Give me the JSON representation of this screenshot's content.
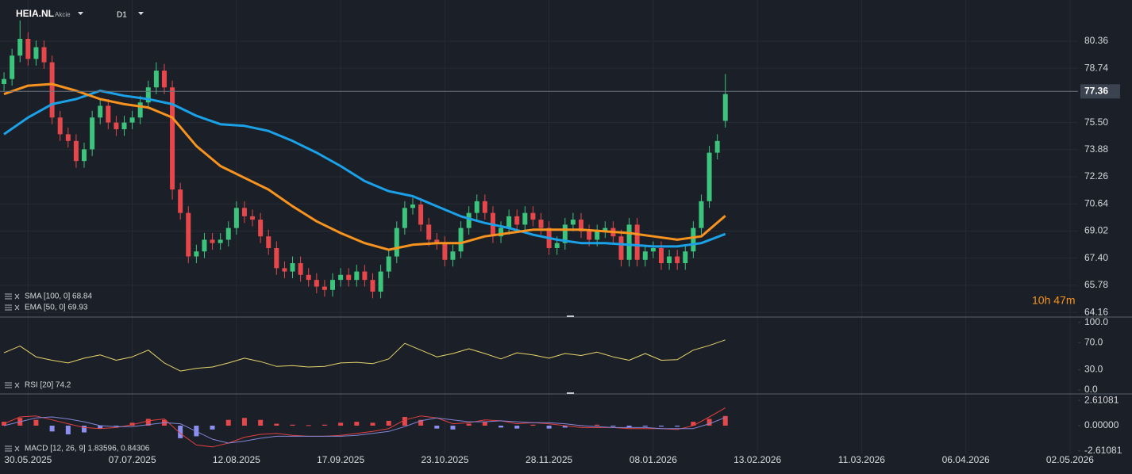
{
  "header": {
    "symbol": "HEIA.NL",
    "asset_type": "Akcie",
    "timeframe": "D1",
    "countdown": "10h 47m"
  },
  "chart_data": [
    {
      "type": "candlestick",
      "x": [
        0,
        2,
        4,
        6,
        8,
        10,
        12,
        14,
        16,
        18,
        20,
        22,
        24,
        26,
        28,
        30,
        32,
        34,
        36,
        38,
        40,
        42,
        44,
        46,
        48,
        50,
        52,
        54,
        56,
        58,
        60,
        62,
        64,
        66,
        68,
        70,
        72,
        74,
        76,
        78,
        80,
        82,
        84,
        86,
        88,
        90,
        92,
        94,
        96,
        98,
        100,
        102,
        104,
        106,
        108,
        110,
        112,
        114,
        116,
        118,
        120,
        122,
        124,
        126,
        128,
        130,
        132,
        134,
        136,
        138,
        140,
        142,
        144,
        146,
        148,
        150,
        152,
        154,
        156,
        158,
        160,
        162,
        164,
        166,
        168,
        170,
        172,
        174,
        176,
        178,
        180
      ],
      "open": [
        77.8,
        78.1,
        79.5,
        80.5,
        79.3,
        80.0,
        79.1,
        75.8,
        74.8,
        74.4,
        73.2,
        73.9,
        75.8,
        76.5,
        75.5,
        75.1,
        75.5,
        75.8,
        76.7,
        77.6,
        78.6,
        77.6,
        71.5,
        70.1,
        67.5,
        67.8,
        68.5,
        68.3,
        68.5,
        69.2,
        70.4,
        69.9,
        69.7,
        68.7,
        68.0,
        66.8,
        66.6,
        67.1,
        66.4,
        66.1,
        65.7,
        65.5,
        66.1,
        66.4,
        66.1,
        66.6,
        66.1,
        65.4,
        66.6,
        67.5,
        69.2,
        70.4,
        70.6,
        69.4,
        68.5,
        68.3,
        67.3,
        67.8,
        69.2,
        70.1,
        70.8,
        70.1,
        68.7,
        69.2,
        69.9,
        69.4,
        70.1,
        69.7,
        69.2,
        68.0,
        68.3,
        69.4,
        69.7,
        69.0,
        68.5,
        69.0,
        69.2,
        68.7,
        67.3,
        69.4,
        67.3,
        67.8,
        68.0,
        67.1,
        67.5,
        67.1,
        67.8,
        69.2,
        70.8,
        73.7,
        75.6
      ],
      "high": [
        78.5,
        79.9,
        81.6,
        80.9,
        80.4,
        80.4,
        79.5,
        76.2,
        75.2,
        74.8,
        74.3,
        76.2,
        76.9,
        76.9,
        75.9,
        75.9,
        76.2,
        77.1,
        78.0,
        79.1,
        79.0,
        78.0,
        71.9,
        70.5,
        68.2,
        68.9,
        68.9,
        68.9,
        69.6,
        70.8,
        70.8,
        70.3,
        70.1,
        69.1,
        68.4,
        67.2,
        67.5,
        67.5,
        66.8,
        66.5,
        66.1,
        66.5,
        66.8,
        66.8,
        67.0,
        67.0,
        66.5,
        67.0,
        67.9,
        69.6,
        70.8,
        71.0,
        71.0,
        69.8,
        68.9,
        68.7,
        68.2,
        69.6,
        70.5,
        71.2,
        71.2,
        70.5,
        69.6,
        70.3,
        70.3,
        70.5,
        70.5,
        70.1,
        69.6,
        68.7,
        69.8,
        70.1,
        70.1,
        69.4,
        69.4,
        69.6,
        69.6,
        69.1,
        69.8,
        69.8,
        68.2,
        68.4,
        68.4,
        67.9,
        67.9,
        68.2,
        69.6,
        71.2,
        74.1,
        74.8,
        78.4
      ],
      "low": [
        77.4,
        77.7,
        79.1,
        78.9,
        78.9,
        78.7,
        75.4,
        74.4,
        74.0,
        72.8,
        72.8,
        73.5,
        75.4,
        75.1,
        74.7,
        74.7,
        75.1,
        75.4,
        76.3,
        77.2,
        77.2,
        70.9,
        69.7,
        67.1,
        67.1,
        67.4,
        67.9,
        67.9,
        68.1,
        68.8,
        69.5,
        69.3,
        68.3,
        67.6,
        66.4,
        66.2,
        66.2,
        66.0,
        65.7,
        65.3,
        65.1,
        65.1,
        65.7,
        65.7,
        65.7,
        65.7,
        65.0,
        65.0,
        66.2,
        67.1,
        68.8,
        70.0,
        69.0,
        68.1,
        67.9,
        66.9,
        66.9,
        67.4,
        68.8,
        69.7,
        69.7,
        68.3,
        68.3,
        68.8,
        69.0,
        69.0,
        69.3,
        68.8,
        67.6,
        67.6,
        67.9,
        69.0,
        68.6,
        68.1,
        68.1,
        68.6,
        68.3,
        66.9,
        66.9,
        66.9,
        66.9,
        67.4,
        66.7,
        66.7,
        66.7,
        66.7,
        67.4,
        68.8,
        70.4,
        73.3,
        75.2
      ],
      "close": [
        78.1,
        79.5,
        80.5,
        79.3,
        80.0,
        79.1,
        75.8,
        74.8,
        74.4,
        73.2,
        73.9,
        75.8,
        76.5,
        75.5,
        75.1,
        75.5,
        75.8,
        76.7,
        77.6,
        78.6,
        77.6,
        71.5,
        70.1,
        67.5,
        67.8,
        68.5,
        68.3,
        68.5,
        69.2,
        70.4,
        69.9,
        69.7,
        68.7,
        68.0,
        66.8,
        66.6,
        67.1,
        66.4,
        66.1,
        65.7,
        65.5,
        66.1,
        66.4,
        66.1,
        66.6,
        66.1,
        65.4,
        66.6,
        67.5,
        69.2,
        70.4,
        70.6,
        69.4,
        68.5,
        68.3,
        67.3,
        67.8,
        69.2,
        70.1,
        70.8,
        70.1,
        68.7,
        69.2,
        69.9,
        69.4,
        70.1,
        69.7,
        69.2,
        68.0,
        68.3,
        69.4,
        69.7,
        69.0,
        68.5,
        69.0,
        69.2,
        68.7,
        67.3,
        69.4,
        67.3,
        67.8,
        68.0,
        67.1,
        67.5,
        67.1,
        67.8,
        69.2,
        70.8,
        73.7,
        74.4,
        77.2
      ],
      "up_color": "#3cc47c",
      "down_color": "#e5474b",
      "xlim": [
        -1,
        268
      ],
      "xticks": [
        {
          "value": 6,
          "label": "30.05.2025"
        },
        {
          "value": 32,
          "label": "07.07.2025"
        },
        {
          "value": 58,
          "label": "12.08.2025"
        },
        {
          "value": 84,
          "label": "17.09.2025"
        },
        {
          "value": 110,
          "label": "23.10.2025"
        },
        {
          "value": 136,
          "label": "28.11.2025"
        },
        {
          "value": 162,
          "label": "08.01.2026"
        },
        {
          "value": 188,
          "label": "13.02.2026"
        },
        {
          "value": 214,
          "label": "11.03.2026"
        },
        {
          "value": 240,
          "label": "06.04.2026"
        },
        {
          "value": 266,
          "label": "02.05.2026"
        }
      ],
      "ylim": [
        63.88,
        82.82
      ],
      "yticks": [
        80.36,
        78.74,
        {
          "value": 75.5,
          "label": "75.50"
        },
        73.88,
        72.26,
        70.64,
        69.02,
        {
          "value": 67.4,
          "label": "67.40"
        },
        65.78,
        64.16
      ],
      "grid": true,
      "current_price": 77.36,
      "series": [
        {
          "name": "SMA [100, 0] 68.84",
          "color": "#1ba1e8",
          "x": [
            0,
            6,
            12,
            18,
            24,
            30,
            36,
            42,
            48,
            54,
            60,
            66,
            72,
            78,
            84,
            90,
            96,
            102,
            108,
            114,
            120,
            126,
            132,
            138,
            144,
            150,
            156,
            162,
            168,
            174,
            180
          ],
          "values": [
            74.8,
            75.8,
            76.6,
            76.9,
            77.4,
            77.1,
            76.9,
            76.6,
            75.9,
            75.4,
            75.3,
            75.0,
            74.4,
            73.7,
            72.9,
            72.0,
            71.4,
            71.1,
            70.5,
            69.9,
            69.5,
            69.2,
            68.8,
            68.5,
            68.3,
            68.3,
            68.2,
            68.1,
            68.1,
            68.3,
            68.84
          ]
        },
        {
          "name": "EMA [50, 0] 69.93",
          "color": "#f7931e",
          "x": [
            0,
            6,
            12,
            18,
            24,
            30,
            36,
            42,
            48,
            54,
            60,
            66,
            72,
            78,
            84,
            90,
            96,
            102,
            108,
            114,
            120,
            126,
            132,
            138,
            144,
            150,
            156,
            162,
            168,
            174,
            180
          ],
          "values": [
            77.2,
            77.7,
            77.8,
            77.4,
            76.9,
            76.6,
            76.4,
            75.8,
            74.1,
            72.9,
            72.2,
            71.5,
            70.5,
            69.6,
            68.9,
            68.3,
            67.9,
            68.2,
            68.3,
            68.3,
            68.7,
            68.9,
            69.1,
            69.1,
            69.1,
            69.0,
            68.9,
            68.7,
            68.5,
            68.7,
            69.93
          ]
        }
      ]
    },
    {
      "type": "line",
      "x": [
        0,
        4,
        8,
        12,
        16,
        20,
        24,
        28,
        32,
        36,
        40,
        44,
        48,
        52,
        56,
        60,
        64,
        68,
        72,
        76,
        80,
        84,
        88,
        92,
        96,
        100,
        104,
        108,
        112,
        116,
        120,
        124,
        128,
        132,
        136,
        140,
        144,
        148,
        152,
        156,
        160,
        164,
        168,
        172,
        176,
        180
      ],
      "ylim": [
        -5.9,
        108
      ],
      "yticks": [
        {
          "value": 100,
          "label": "100.0"
        },
        {
          "value": 70,
          "label": "70.0"
        },
        {
          "value": 30,
          "label": "30.0"
        },
        {
          "value": 0,
          "label": "0.0"
        }
      ],
      "series": [
        {
          "name": "RSI [20] 74.2",
          "color": "#e6d36b",
          "values": [
            55,
            65,
            49,
            44,
            40,
            47,
            52,
            44,
            49,
            59,
            40,
            28,
            32,
            34,
            40,
            47,
            42,
            35,
            36,
            34,
            35,
            40,
            41,
            39,
            46,
            69,
            59,
            49,
            54,
            61,
            54,
            46,
            55,
            52,
            47,
            54,
            51,
            56,
            49,
            44,
            54,
            44,
            45,
            59,
            66,
            74.2
          ]
        }
      ]
    },
    {
      "type": "macd",
      "legend": "MACD [12, 26, 9] 1.83596, 0.84306",
      "x": [
        0,
        4,
        8,
        12,
        16,
        20,
        24,
        28,
        32,
        36,
        40,
        44,
        48,
        52,
        56,
        60,
        64,
        68,
        72,
        76,
        80,
        84,
        88,
        92,
        96,
        100,
        104,
        108,
        112,
        116,
        120,
        124,
        128,
        132,
        136,
        140,
        144,
        148,
        152,
        156,
        160,
        164,
        168,
        172,
        176,
        180
      ],
      "ylim": [
        -2.87,
        3.28
      ],
      "yticks": [
        2.61081,
        {
          "value": 0,
          "label": "0.00000"
        },
        -2.61081
      ],
      "histogram": {
        "up_color": "#e5474b",
        "down_color": "#8c8ff0",
        "values": [
          0.4,
          0.8,
          0.6,
          -0.6,
          -0.9,
          -0.7,
          -0.3,
          -0.1,
          0.3,
          0.7,
          0.6,
          -1.3,
          -1.1,
          -0.4,
          0.6,
          0.8,
          0.6,
          0.2,
          0.1,
          0.05,
          0.1,
          0.3,
          0.4,
          0.3,
          0.5,
          0.9,
          0.6,
          -0.3,
          -0.4,
          0.2,
          0.4,
          -0.2,
          -0.3,
          0.1,
          -0.3,
          -0.2,
          0.05,
          0.1,
          -0.1,
          -0.2,
          -0.1,
          -0.1,
          -0.1,
          0.4,
          0.7,
          1.0
        ]
      },
      "series": [
        {
          "color": "#e0403f",
          "values": [
            0.2,
            0.9,
            1.0,
            0.6,
            0.2,
            -0.2,
            -0.3,
            -0.2,
            0.1,
            0.5,
            0.7,
            -0.8,
            -2.0,
            -2.2,
            -1.8,
            -1.2,
            -0.9,
            -0.8,
            -1.0,
            -1.1,
            -1.1,
            -1.0,
            -0.8,
            -0.6,
            -0.3,
            0.6,
            1.0,
            0.8,
            0.2,
            0.3,
            0.6,
            0.5,
            0.2,
            0.3,
            0.2,
            0.0,
            -0.2,
            -0.2,
            -0.2,
            -0.3,
            -0.3,
            -0.3,
            -0.4,
            0.0,
            0.9,
            1.83596
          ]
        },
        {
          "color": "#8286d6",
          "values": [
            0.0,
            0.4,
            0.8,
            0.9,
            0.7,
            0.4,
            0.0,
            -0.1,
            -0.1,
            0.1,
            0.3,
            0.2,
            -0.6,
            -1.4,
            -1.8,
            -1.6,
            -1.3,
            -1.1,
            -1.1,
            -1.1,
            -1.1,
            -1.1,
            -1.0,
            -0.8,
            -0.6,
            -0.1,
            0.5,
            0.8,
            0.6,
            0.4,
            0.4,
            0.5,
            0.4,
            0.3,
            0.3,
            0.2,
            0.0,
            -0.1,
            -0.2,
            -0.2,
            -0.2,
            -0.3,
            -0.3,
            -0.3,
            0.2,
            0.84306
          ]
        }
      ]
    }
  ]
}
